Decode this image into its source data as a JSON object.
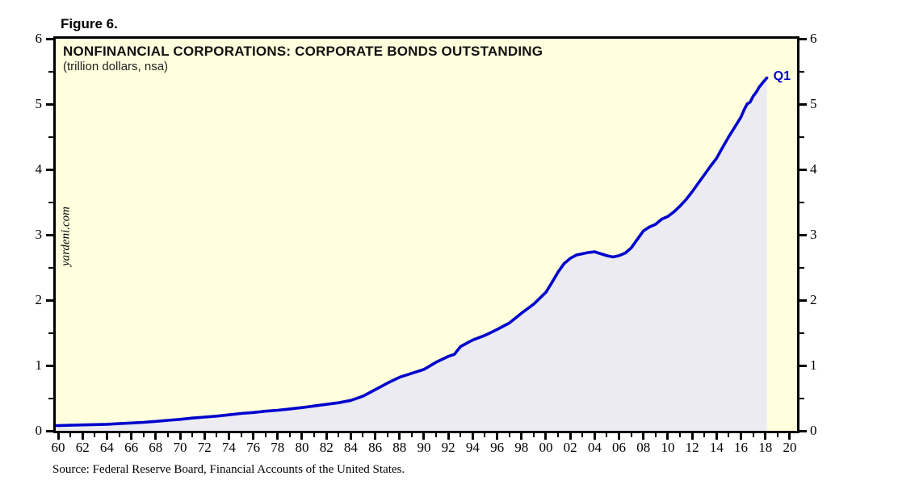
{
  "figure_label": "Figure 6.",
  "chart": {
    "title": "NONFINANCIAL CORPORATIONS: CORPORATE BONDS OUTSTANDING",
    "subtitle": "(trillion dollars, nsa)",
    "watermark": "yardeni.com",
    "end_label": "Q1"
  },
  "source": "Source: Federal Reserve Board, Financial Accounts of the United States.",
  "colors": {
    "plot_bg": "#FFFFDE",
    "area_fill": "#EBEBF1",
    "line": "#0101CE",
    "end_label": "#0000CC",
    "frame": "#000000",
    "tick": "#000000"
  },
  "chart_data": {
    "type": "area",
    "title": "NONFINANCIAL CORPORATIONS: CORPORATE BONDS OUTSTANDING",
    "units": "trillion dollars, nsa",
    "xlim": [
      1959.8,
      2020.6
    ],
    "ylim": [
      0,
      6
    ],
    "grid": false,
    "legend_position": "none",
    "dual_y_axis": true,
    "y_minor_step": 0.5,
    "x_minor_step": 1,
    "y_ticks": [
      {
        "value": 0,
        "label": "0"
      },
      {
        "value": 1,
        "label": "1"
      },
      {
        "value": 2,
        "label": "2"
      },
      {
        "value": 3,
        "label": "3"
      },
      {
        "value": 4,
        "label": "4"
      },
      {
        "value": 5,
        "label": "5"
      },
      {
        "value": 6,
        "label": "6"
      }
    ],
    "x_ticks": [
      {
        "year": 1960,
        "label": "60"
      },
      {
        "year": 1962,
        "label": "62"
      },
      {
        "year": 1964,
        "label": "64"
      },
      {
        "year": 1966,
        "label": "66"
      },
      {
        "year": 1968,
        "label": "68"
      },
      {
        "year": 1970,
        "label": "70"
      },
      {
        "year": 1972,
        "label": "72"
      },
      {
        "year": 1974,
        "label": "74"
      },
      {
        "year": 1976,
        "label": "76"
      },
      {
        "year": 1978,
        "label": "78"
      },
      {
        "year": 1980,
        "label": "80"
      },
      {
        "year": 1982,
        "label": "82"
      },
      {
        "year": 1984,
        "label": "84"
      },
      {
        "year": 1986,
        "label": "86"
      },
      {
        "year": 1988,
        "label": "88"
      },
      {
        "year": 1990,
        "label": "90"
      },
      {
        "year": 1992,
        "label": "92"
      },
      {
        "year": 1994,
        "label": "94"
      },
      {
        "year": 1996,
        "label": "96"
      },
      {
        "year": 1998,
        "label": "98"
      },
      {
        "year": 2000,
        "label": "00"
      },
      {
        "year": 2002,
        "label": "02"
      },
      {
        "year": 2004,
        "label": "04"
      },
      {
        "year": 2006,
        "label": "06"
      },
      {
        "year": 2008,
        "label": "08"
      },
      {
        "year": 2010,
        "label": "10"
      },
      {
        "year": 2012,
        "label": "12"
      },
      {
        "year": 2014,
        "label": "14"
      },
      {
        "year": 2016,
        "label": "16"
      },
      {
        "year": 2018,
        "label": "18"
      },
      {
        "year": 2020,
        "label": "20"
      }
    ],
    "series": [
      {
        "name": "Corporate bonds outstanding",
        "last_point_label": "Q1",
        "points": [
          [
            1960,
            0.08
          ],
          [
            1961,
            0.085
          ],
          [
            1962,
            0.09
          ],
          [
            1963,
            0.095
          ],
          [
            1964,
            0.1
          ],
          [
            1965,
            0.11
          ],
          [
            1966,
            0.12
          ],
          [
            1967,
            0.13
          ],
          [
            1968,
            0.145
          ],
          [
            1969,
            0.16
          ],
          [
            1970,
            0.175
          ],
          [
            1971,
            0.195
          ],
          [
            1972,
            0.21
          ],
          [
            1973,
            0.225
          ],
          [
            1974,
            0.245
          ],
          [
            1975,
            0.265
          ],
          [
            1976,
            0.28
          ],
          [
            1977,
            0.3
          ],
          [
            1978,
            0.315
          ],
          [
            1979,
            0.335
          ],
          [
            1980,
            0.355
          ],
          [
            1981,
            0.38
          ],
          [
            1982,
            0.405
          ],
          [
            1983,
            0.43
          ],
          [
            1984,
            0.465
          ],
          [
            1985,
            0.53
          ],
          [
            1986,
            0.63
          ],
          [
            1987,
            0.73
          ],
          [
            1988,
            0.82
          ],
          [
            1989,
            0.88
          ],
          [
            1990,
            0.94
          ],
          [
            1991,
            1.05
          ],
          [
            1992,
            1.14
          ],
          [
            1992.5,
            1.17
          ],
          [
            1993,
            1.29
          ],
          [
            1993.5,
            1.34
          ],
          [
            1994,
            1.39
          ],
          [
            1995,
            1.46
          ],
          [
            1996,
            1.55
          ],
          [
            1997,
            1.65
          ],
          [
            1998,
            1.8
          ],
          [
            1999,
            1.94
          ],
          [
            2000,
            2.12
          ],
          [
            2000.5,
            2.27
          ],
          [
            2001,
            2.43
          ],
          [
            2001.5,
            2.56
          ],
          [
            2002,
            2.64
          ],
          [
            2002.5,
            2.69
          ],
          [
            2003,
            2.71
          ],
          [
            2003.5,
            2.73
          ],
          [
            2004,
            2.74
          ],
          [
            2004.5,
            2.71
          ],
          [
            2005,
            2.68
          ],
          [
            2005.5,
            2.66
          ],
          [
            2006,
            2.68
          ],
          [
            2006.5,
            2.72
          ],
          [
            2007,
            2.8
          ],
          [
            2007.5,
            2.93
          ],
          [
            2008,
            3.06
          ],
          [
            2008.5,
            3.12
          ],
          [
            2009,
            3.16
          ],
          [
            2009.5,
            3.24
          ],
          [
            2010,
            3.28
          ],
          [
            2010.5,
            3.35
          ],
          [
            2011,
            3.44
          ],
          [
            2011.5,
            3.54
          ],
          [
            2012,
            3.66
          ],
          [
            2012.5,
            3.79
          ],
          [
            2013,
            3.92
          ],
          [
            2013.5,
            4.05
          ],
          [
            2014,
            4.17
          ],
          [
            2014.5,
            4.34
          ],
          [
            2015,
            4.5
          ],
          [
            2015.5,
            4.65
          ],
          [
            2016,
            4.8
          ],
          [
            2016.25,
            4.91
          ],
          [
            2016.5,
            5.0
          ],
          [
            2016.75,
            5.03
          ],
          [
            2017,
            5.12
          ],
          [
            2017.25,
            5.18
          ],
          [
            2017.5,
            5.26
          ],
          [
            2017.75,
            5.32
          ],
          [
            2018.125,
            5.4
          ]
        ]
      }
    ]
  }
}
